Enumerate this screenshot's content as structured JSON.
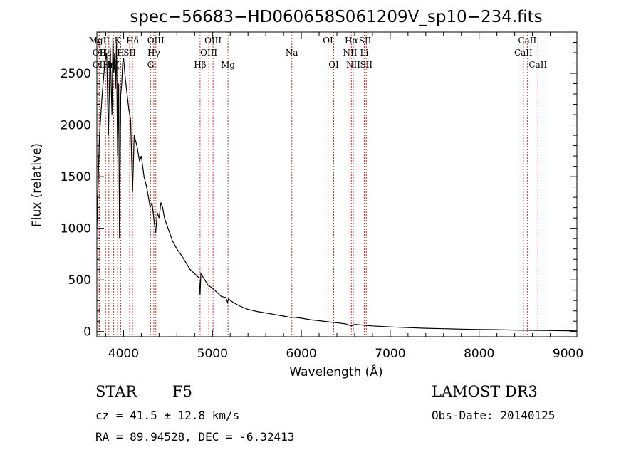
{
  "chart_data": {
    "type": "line",
    "title": "spec−56683−HD060658S061209V_sp10−234.fits",
    "xlabel": "Wavelength (Å)",
    "ylabel": "Flux (relative)",
    "xlim": [
      3700,
      9100
    ],
    "ylim": [
      -50,
      2900
    ],
    "xticks": [
      4000,
      5000,
      6000,
      7000,
      8000,
      9000
    ],
    "yticks": [
      0,
      500,
      1000,
      1500,
      2000,
      2500
    ],
    "grid": false,
    "series": [
      {
        "name": "flux",
        "x": [
          3700,
          3730,
          3760,
          3790,
          3810,
          3830,
          3850,
          3870,
          3880,
          3890,
          3900,
          3910,
          3920,
          3933,
          3945,
          3955,
          3968,
          3980,
          3990,
          4000,
          4020,
          4040,
          4060,
          4080,
          4101,
          4120,
          4150,
          4180,
          4200,
          4230,
          4260,
          4280,
          4300,
          4320,
          4340,
          4360,
          4380,
          4400,
          4420,
          4440,
          4460,
          4480,
          4500,
          4550,
          4600,
          4650,
          4700,
          4750,
          4800,
          4850,
          4861,
          4870,
          4900,
          4950,
          5000,
          5050,
          5100,
          5150,
          5170,
          5180,
          5200,
          5300,
          5400,
          5500,
          5600,
          5700,
          5800,
          5893,
          5900,
          6000,
          6100,
          6200,
          6300,
          6400,
          6500,
          6563,
          6600,
          6700,
          6800,
          7000,
          7200,
          7400,
          7600,
          7800,
          8000,
          8200,
          8400,
          8600,
          8800,
          9000,
          9100
        ],
        "y": [
          1000,
          1900,
          2300,
          2600,
          2700,
          1900,
          2750,
          2100,
          2850,
          2500,
          2700,
          2350,
          2800,
          1700,
          2400,
          900,
          2300,
          2400,
          2600,
          2650,
          2450,
          2300,
          2150,
          2050,
          1350,
          1900,
          1800,
          1650,
          1700,
          1500,
          1400,
          1300,
          1200,
          1250,
          1100,
          950,
          1150,
          1100,
          1250,
          1200,
          1100,
          1050,
          1000,
          880,
          800,
          740,
          670,
          600,
          560,
          520,
          350,
          560,
          520,
          450,
          420,
          380,
          340,
          330,
          280,
          320,
          300,
          250,
          215,
          195,
          180,
          165,
          150,
          135,
          140,
          130,
          115,
          105,
          95,
          85,
          75,
          55,
          70,
          62,
          55,
          45,
          38,
          32,
          28,
          24,
          20,
          18,
          15,
          12,
          10,
          8,
          6
        ]
      }
    ],
    "lines": [
      {
        "label": "MgII",
        "wl": 3727,
        "row": 0
      },
      {
        "label": "OII",
        "wl": 3727,
        "row": 1
      },
      {
        "label": "OII",
        "wl": 3727,
        "row": 2
      },
      {
        "label": "Hε",
        "wl": 3798,
        "row": 1
      },
      {
        "label": "Hη",
        "wl": 3835,
        "row": 2
      },
      {
        "label": "K",
        "wl": 3933,
        "row": 0
      },
      {
        "label": "H",
        "wl": 3968,
        "row": 1
      },
      {
        "label": "Hζ",
        "wl": 3889,
        "row": 2
      },
      {
        "label": "SII",
        "wl": 4069,
        "row": 1
      },
      {
        "label": "Hδ",
        "wl": 4101,
        "row": 0
      },
      {
        "label": "OIII",
        "wl": 4363,
        "row": 0
      },
      {
        "label": "Hγ",
        "wl": 4340,
        "row": 1
      },
      {
        "label": "G",
        "wl": 4304,
        "row": 2
      },
      {
        "label": "Hβ",
        "wl": 4861,
        "row": 2
      },
      {
        "label": "OIII",
        "wl": 5007,
        "row": 0
      },
      {
        "label": "OIII",
        "wl": 4959,
        "row": 1
      },
      {
        "label": "Mg",
        "wl": 5175,
        "row": 2
      },
      {
        "label": "Na",
        "wl": 5893,
        "row": 1
      },
      {
        "label": "OI",
        "wl": 6300,
        "row": 0
      },
      {
        "label": "OI",
        "wl": 6364,
        "row": 2
      },
      {
        "label": "Hα",
        "wl": 6563,
        "row": 0
      },
      {
        "label": "NII",
        "wl": 6548,
        "row": 1
      },
      {
        "label": "NII",
        "wl": 6584,
        "row": 2
      },
      {
        "label": "SII",
        "wl": 6717,
        "row": 0
      },
      {
        "label": "Li",
        "wl": 6708,
        "row": 1
      },
      {
        "label": "SII",
        "wl": 6731,
        "row": 2
      },
      {
        "label": "CaII",
        "wl": 8542,
        "row": 0
      },
      {
        "label": "CaII",
        "wl": 8498,
        "row": 1
      },
      {
        "label": "CaII",
        "wl": 8662,
        "row": 2
      }
    ]
  },
  "info": {
    "object_class": "STAR",
    "subclass": "F5",
    "survey": "LAMOST DR3",
    "cz": "cz = 41.5 ± 12.8 km/s",
    "obs_date": "Obs-Date: 20140125",
    "coords": "RA =  89.94528, DEC =  -6.32413"
  },
  "colors": {
    "line_marker": "#c0392b",
    "spectrum": "#000000"
  }
}
